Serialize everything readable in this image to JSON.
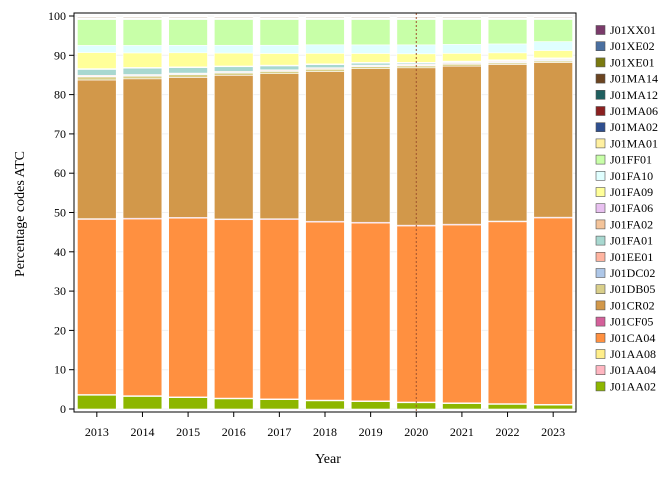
{
  "chart_data": {
    "type": "bar",
    "stacked": true,
    "xlabel": "Year",
    "ylabel": "Percentage codes ATC",
    "ylim": [
      0,
      100
    ],
    "yticks": [
      0,
      10,
      20,
      30,
      40,
      50,
      60,
      70,
      80,
      90,
      100
    ],
    "categories": [
      "2013",
      "2014",
      "2015",
      "2016",
      "2017",
      "2018",
      "2019",
      "2020",
      "2021",
      "2022",
      "2023"
    ],
    "reference_line": {
      "x": "2020",
      "color": "#a0522d",
      "style": "dotted"
    },
    "legend_position": "right",
    "series": [
      {
        "name": "J01AA02",
        "color": "#8db600",
        "values": [
          3.5,
          3.2,
          2.9,
          2.6,
          2.4,
          2.1,
          1.9,
          1.6,
          1.4,
          1.2,
          1.0
        ]
      },
      {
        "name": "J01AA04",
        "color": "#ffb6c1",
        "values": [
          0.1,
          0.1,
          0.1,
          0.1,
          0.1,
          0.1,
          0.1,
          0.1,
          0.1,
          0.1,
          0.1
        ]
      },
      {
        "name": "J01AA08",
        "color": "#ffee8a",
        "values": [
          0.1,
          0.1,
          0.1,
          0.1,
          0.1,
          0.1,
          0.1,
          0.1,
          0.1,
          0.1,
          0.1
        ]
      },
      {
        "name": "J01CA04",
        "color": "#ff9040",
        "values": [
          44.6,
          45.0,
          45.7,
          45.7,
          46.0,
          45.8,
          45.6,
          45.2,
          45.7,
          46.9,
          48.1
        ]
      },
      {
        "name": "J01CF05",
        "color": "#d4609a",
        "values": [
          0.2,
          0.2,
          0.2,
          0.2,
          0.2,
          0.2,
          0.2,
          0.2,
          0.2,
          0.2,
          0.2
        ]
      },
      {
        "name": "J01CR02",
        "color": "#d2984a",
        "values": [
          35.3,
          35.5,
          35.8,
          36.8,
          37.2,
          38.5,
          39.4,
          40.4,
          40.6,
          40.4,
          39.9
        ]
      },
      {
        "name": "J01DB05",
        "color": "#d9cf8a",
        "values": [
          0.8,
          0.7,
          0.7,
          0.6,
          0.6,
          0.6,
          0.5,
          0.5,
          0.5,
          0.4,
          0.4
        ]
      },
      {
        "name": "J01DC02",
        "color": "#aec7e8",
        "values": [
          0.2,
          0.2,
          0.2,
          0.2,
          0.2,
          0.2,
          0.2,
          0.2,
          0.2,
          0.2,
          0.2
        ]
      },
      {
        "name": "J01EE01",
        "color": "#ffb4a0",
        "values": [
          0.2,
          0.2,
          0.2,
          0.2,
          0.2,
          0.2,
          0.2,
          0.2,
          0.2,
          0.2,
          0.2
        ]
      },
      {
        "name": "J01FA01",
        "color": "#a8d8d0",
        "values": [
          1.5,
          1.6,
          1.4,
          1.2,
          1.0,
          0.8,
          0.5,
          0.3,
          0.2,
          0.2,
          0.2
        ]
      },
      {
        "name": "J01FA02",
        "color": "#f4c49a",
        "values": [
          0.1,
          0.1,
          0.1,
          0.1,
          0.1,
          0.1,
          0.1,
          0.1,
          0.1,
          0.1,
          0.1
        ]
      },
      {
        "name": "J01FA06",
        "color": "#e8c0f0",
        "values": [
          0.1,
          0.1,
          0.1,
          0.1,
          0.1,
          0.1,
          0.1,
          0.1,
          0.1,
          0.1,
          0.1
        ]
      },
      {
        "name": "J01FA09",
        "color": "#ffff99",
        "values": [
          4.1,
          3.7,
          3.6,
          3.3,
          3.0,
          2.7,
          2.3,
          2.2,
          2.0,
          1.8,
          1.9
        ]
      },
      {
        "name": "J01FA10",
        "color": "#e0ffff",
        "values": [
          1.8,
          1.9,
          1.9,
          2.0,
          2.1,
          2.2,
          2.2,
          2.3,
          2.3,
          2.3,
          2.3
        ]
      },
      {
        "name": "J01FF01",
        "color": "#c8ffa8",
        "values": [
          6.6,
          6.6,
          6.6,
          6.6,
          6.6,
          6.5,
          6.5,
          6.5,
          6.4,
          6.3,
          5.7
        ]
      },
      {
        "name": "J01MA01",
        "color": "#fff0a0",
        "values": [
          0.1,
          0.1,
          0.1,
          0.1,
          0.1,
          0.1,
          0.1,
          0.1,
          0.1,
          0.1,
          0.1
        ]
      },
      {
        "name": "J01MA02",
        "color": "#2f4f8f",
        "values": [
          0.1,
          0.1,
          0.1,
          0.1,
          0.1,
          0.1,
          0.1,
          0.1,
          0.1,
          0.1,
          0.1
        ]
      },
      {
        "name": "J01MA06",
        "color": "#8b2020",
        "values": [
          0.1,
          0.1,
          0.1,
          0.1,
          0.1,
          0.1,
          0.1,
          0.1,
          0.1,
          0.1,
          0.1
        ]
      },
      {
        "name": "J01MA12",
        "color": "#1f5f5f",
        "values": [
          0.1,
          0.1,
          0.1,
          0.1,
          0.1,
          0.1,
          0.1,
          0.1,
          0.1,
          0.1,
          0.1
        ]
      },
      {
        "name": "J01MA14",
        "color": "#6b4420",
        "values": [
          0.2,
          0.2,
          0.2,
          0.2,
          0.2,
          0.2,
          0.2,
          0.2,
          0.2,
          0.2,
          0.2
        ]
      },
      {
        "name": "J01XE01",
        "color": "#7a7a10",
        "values": [
          0.1,
          0.1,
          0.1,
          0.1,
          0.1,
          0.1,
          0.1,
          0.1,
          0.1,
          0.1,
          0.1
        ]
      },
      {
        "name": "J01XE02",
        "color": "#4a6fa0",
        "values": [
          0.1,
          0.1,
          0.1,
          0.1,
          0.1,
          0.1,
          0.1,
          0.1,
          0.1,
          0.1,
          0.1
        ]
      },
      {
        "name": "J01XX01",
        "color": "#7a3a6a",
        "values": [
          0.1,
          0.1,
          0.1,
          0.1,
          0.1,
          0.1,
          0.1,
          0.1,
          0.1,
          0.1,
          0.1
        ]
      }
    ]
  }
}
